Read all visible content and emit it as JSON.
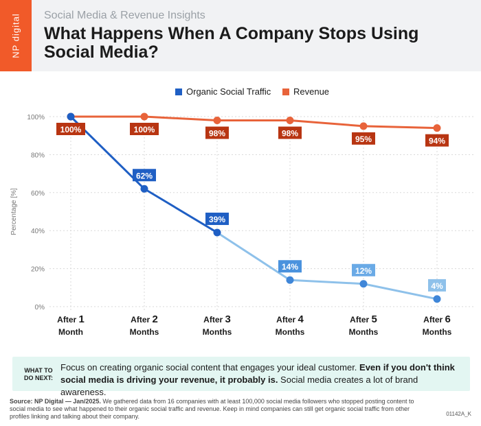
{
  "header": {
    "brand": "NP digital",
    "subtitle": "Social Media & Revenue Insights",
    "title": "What Happens When A Company Stops Using Social Media?"
  },
  "colors": {
    "organic_line": "#1f5fc4",
    "organic_line_light": "#8ec1ea",
    "revenue_line": "#e8633a",
    "revenue_label_bg": "#b83512",
    "grid": "#d8d8d8",
    "brand": "#f15a29",
    "tip_bg": "#e3f6f2"
  },
  "chart_data": {
    "type": "line",
    "ylabel": "Percentage [%]",
    "ylim": [
      0,
      100
    ],
    "yticks": [
      "0%",
      "20%",
      "40%",
      "60%",
      "80%",
      "100%"
    ],
    "categories": [
      {
        "prefix": "After",
        "num": "1",
        "unit": "Month"
      },
      {
        "prefix": "After",
        "num": "2",
        "unit": "Months"
      },
      {
        "prefix": "After",
        "num": "3",
        "unit": "Months"
      },
      {
        "prefix": "After",
        "num": "4",
        "unit": "Months"
      },
      {
        "prefix": "After",
        "num": "5",
        "unit": "Months"
      },
      {
        "prefix": "After",
        "num": "6",
        "unit": "Months"
      }
    ],
    "legend_position": "top-center",
    "series": [
      {
        "name": "Organic Social Traffic",
        "values": [
          100,
          62,
          39,
          14,
          12,
          4
        ],
        "labels": [
          "100%",
          "62%",
          "39%",
          "14%",
          "12%",
          "4%"
        ]
      },
      {
        "name": "Revenue",
        "values": [
          100,
          100,
          98,
          98,
          95,
          94
        ],
        "labels": [
          "100%",
          "100%",
          "98%",
          "98%",
          "95%",
          "94%"
        ]
      }
    ]
  },
  "tip": {
    "label": "WHAT TO DO NEXT:",
    "text_regular": "Focus on creating organic social content that engages your ideal customer. ",
    "text_bold": "Even if you don't think social media is driving your revenue, it probably is.",
    "text_end": " Social media creates a lot of brand awareness."
  },
  "source": {
    "label": "Source: NP Digital — Jan/2025.",
    "text": " We gathered data from 16 companies with at least 100,000 social media followers who stopped posting content to social media to see what happened to their organic social traffic and revenue. Keep in mind companies can still get organic social traffic from other profiles linking and talking about their company."
  },
  "code": "01142A_K"
}
